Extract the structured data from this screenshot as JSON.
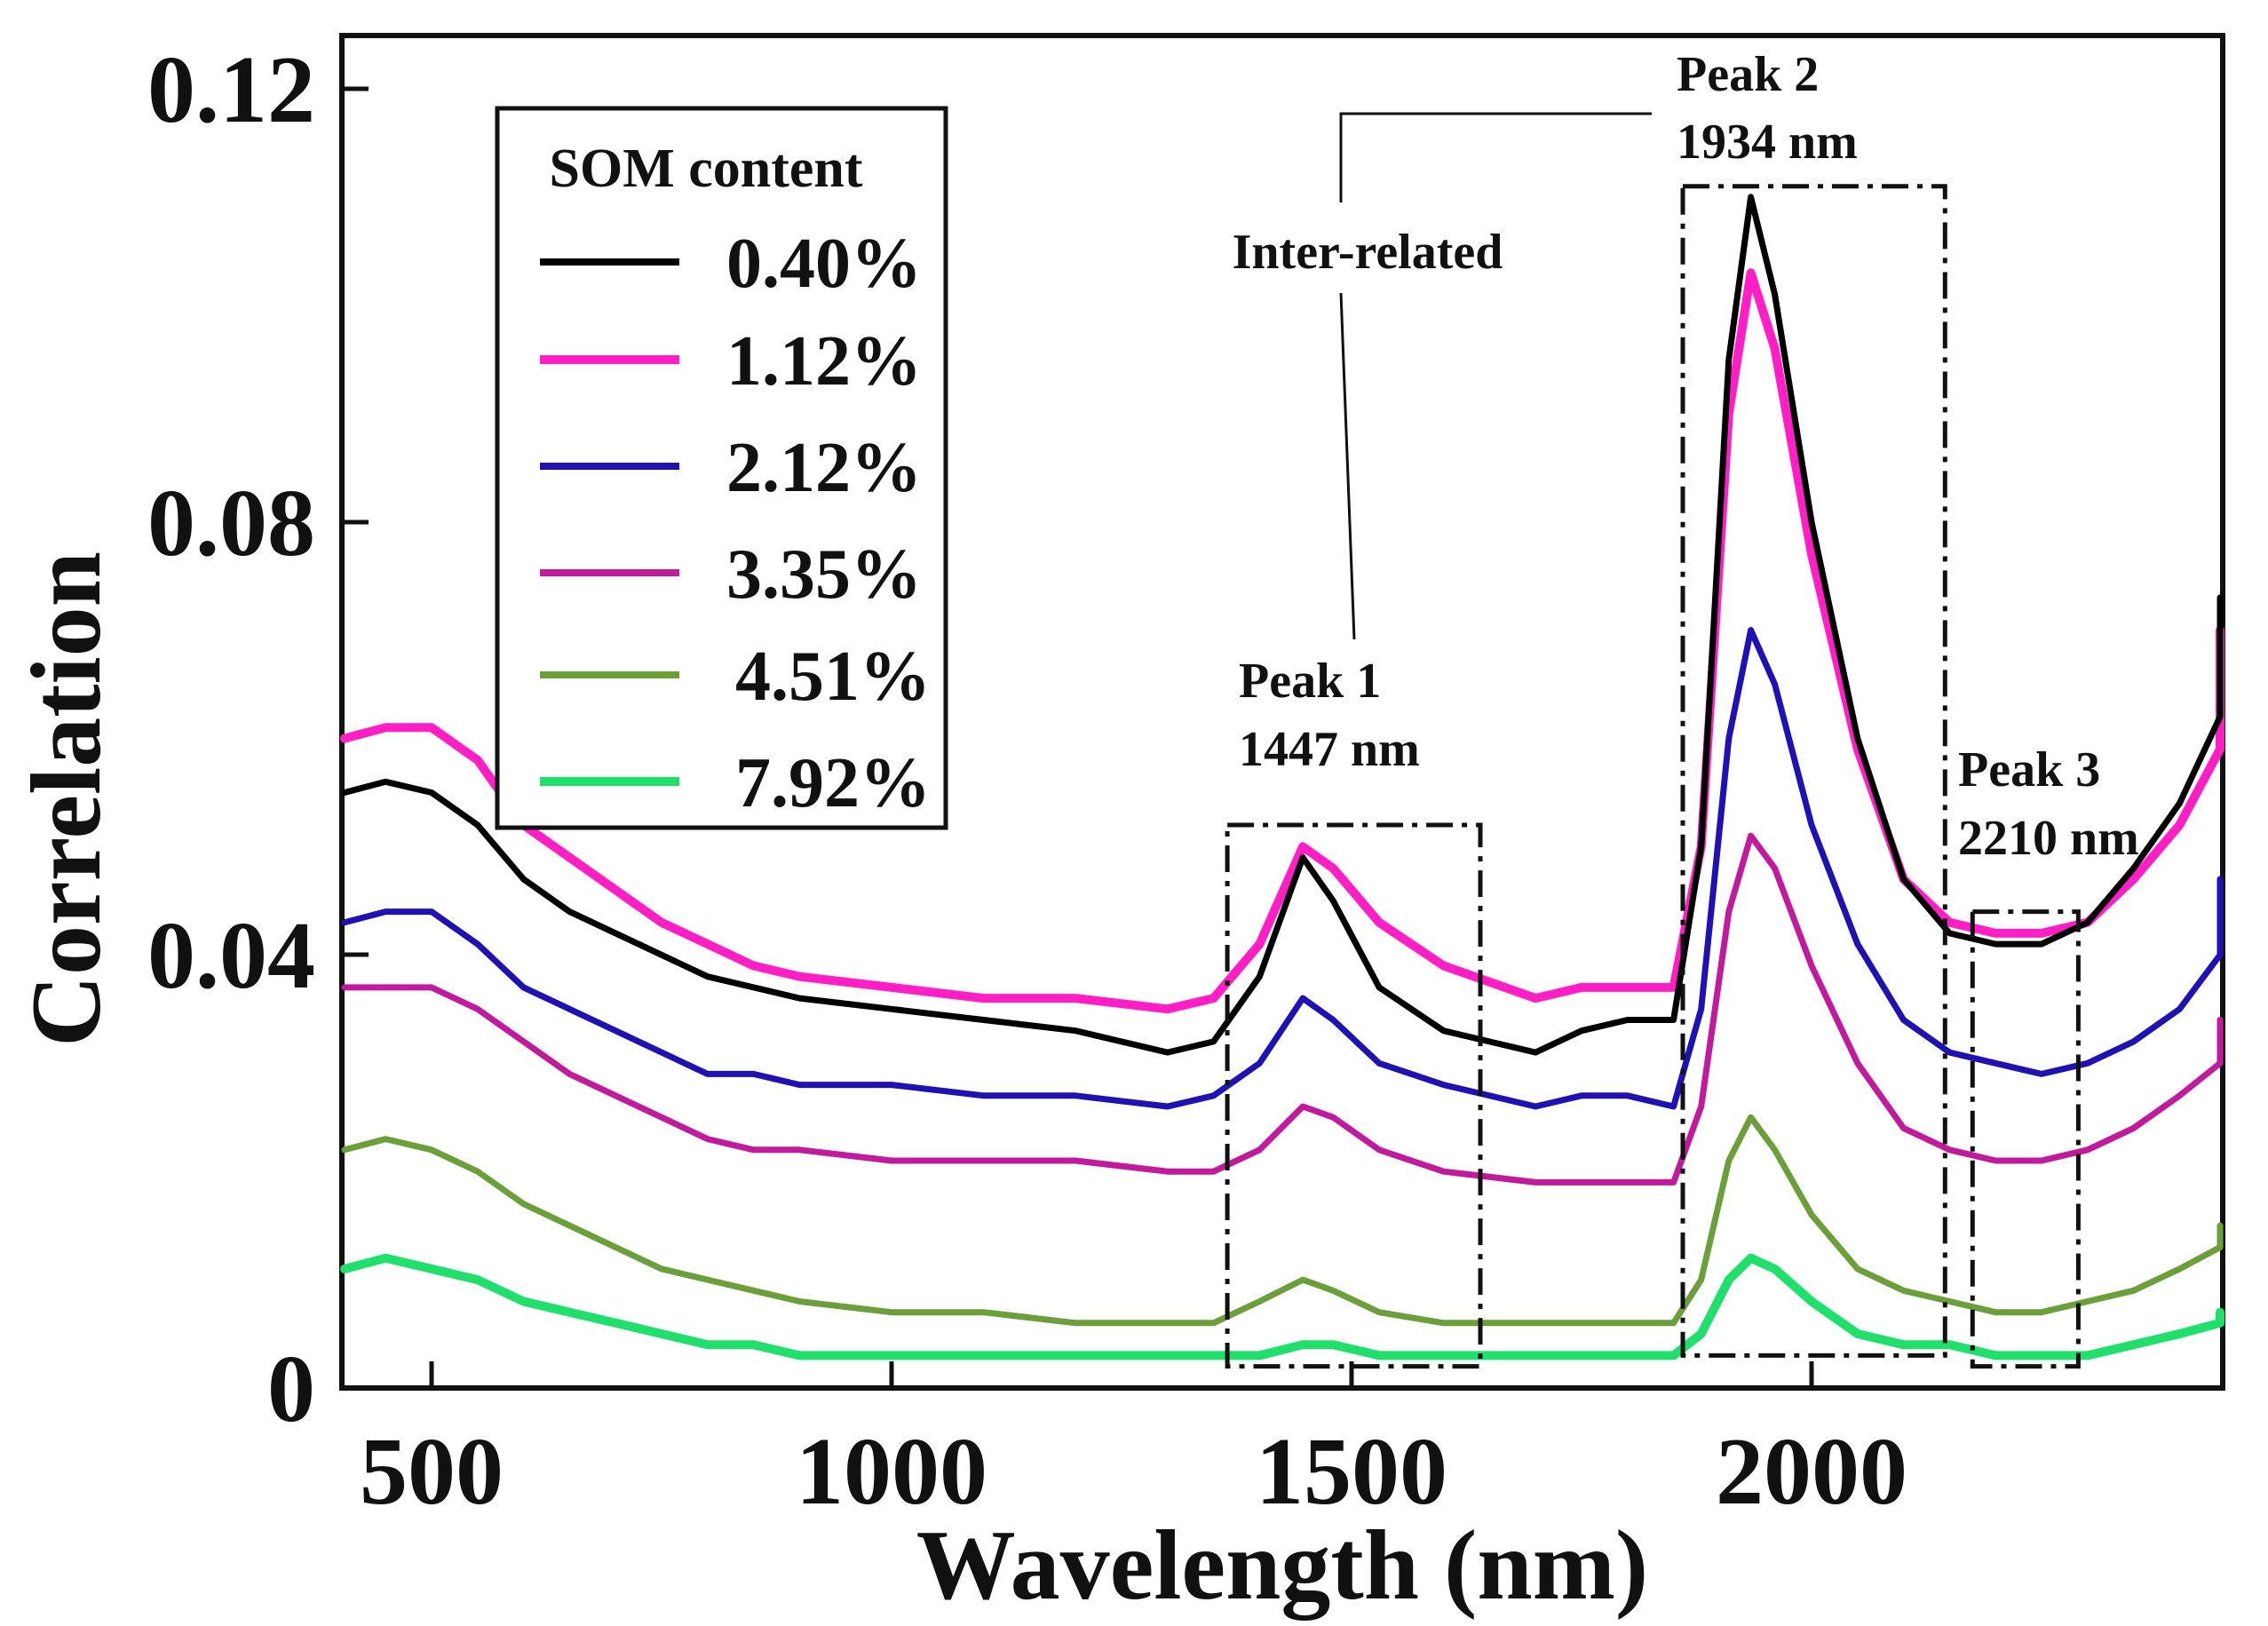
{
  "chart_data": {
    "type": "line",
    "title": "",
    "xlabel": "Wavelength (nm)",
    "ylabel": "Correlation",
    "xlim": [
      400,
      2500
    ],
    "ylim": [
      0,
      0.125
    ],
    "xticks": [
      {
        "value": 500,
        "label": "500"
      },
      {
        "value": 1000,
        "label": "1000"
      },
      {
        "value": 1500,
        "label": "1500"
      },
      {
        "value": 2000,
        "label": "2000"
      }
    ],
    "yticks": [
      {
        "value": 0,
        "label": "0"
      },
      {
        "value": 0.04,
        "label": "0.04"
      },
      {
        "value": 0.08,
        "label": "0.08"
      },
      {
        "value": 0.12,
        "label": "0.12"
      }
    ],
    "grid": false,
    "legend": {
      "title": "SOM content",
      "position": "top-left"
    },
    "series": [
      {
        "name": "0.40%",
        "color": "#000000",
        "points": [
          [
            400,
            0.055
          ],
          [
            450,
            0.056
          ],
          [
            500,
            0.055
          ],
          [
            550,
            0.052
          ],
          [
            600,
            0.047
          ],
          [
            650,
            0.044
          ],
          [
            700,
            0.042
          ],
          [
            750,
            0.04
          ],
          [
            800,
            0.038
          ],
          [
            850,
            0.037
          ],
          [
            900,
            0.036
          ],
          [
            1000,
            0.035
          ],
          [
            1100,
            0.034
          ],
          [
            1200,
            0.033
          ],
          [
            1300,
            0.031
          ],
          [
            1350,
            0.032
          ],
          [
            1400,
            0.038
          ],
          [
            1447,
            0.049
          ],
          [
            1480,
            0.045
          ],
          [
            1530,
            0.037
          ],
          [
            1600,
            0.033
          ],
          [
            1700,
            0.031
          ],
          [
            1750,
            0.033
          ],
          [
            1800,
            0.034
          ],
          [
            1850,
            0.034
          ],
          [
            1880,
            0.05
          ],
          [
            1910,
            0.095
          ],
          [
            1934,
            0.11
          ],
          [
            1960,
            0.101
          ],
          [
            2000,
            0.08
          ],
          [
            2050,
            0.06
          ],
          [
            2100,
            0.047
          ],
          [
            2150,
            0.042
          ],
          [
            2200,
            0.041
          ],
          [
            2250,
            0.041
          ],
          [
            2300,
            0.043
          ],
          [
            2350,
            0.048
          ],
          [
            2400,
            0.054
          ],
          [
            2450,
            0.062
          ],
          [
            2500,
            0.073
          ]
        ]
      },
      {
        "name": "1.12%",
        "color": "#ff1fc4",
        "points": [
          [
            400,
            0.06
          ],
          [
            450,
            0.061
          ],
          [
            500,
            0.061
          ],
          [
            550,
            0.058
          ],
          [
            600,
            0.052
          ],
          [
            650,
            0.049
          ],
          [
            700,
            0.046
          ],
          [
            750,
            0.043
          ],
          [
            800,
            0.041
          ],
          [
            850,
            0.039
          ],
          [
            900,
            0.038
          ],
          [
            1000,
            0.037
          ],
          [
            1100,
            0.036
          ],
          [
            1200,
            0.036
          ],
          [
            1300,
            0.035
          ],
          [
            1350,
            0.036
          ],
          [
            1400,
            0.041
          ],
          [
            1447,
            0.05
          ],
          [
            1480,
            0.048
          ],
          [
            1530,
            0.043
          ],
          [
            1600,
            0.039
          ],
          [
            1700,
            0.036
          ],
          [
            1750,
            0.037
          ],
          [
            1800,
            0.037
          ],
          [
            1850,
            0.037
          ],
          [
            1880,
            0.05
          ],
          [
            1910,
            0.09
          ],
          [
            1934,
            0.103
          ],
          [
            1960,
            0.096
          ],
          [
            2000,
            0.077
          ],
          [
            2050,
            0.059
          ],
          [
            2100,
            0.047
          ],
          [
            2150,
            0.043
          ],
          [
            2200,
            0.042
          ],
          [
            2250,
            0.042
          ],
          [
            2300,
            0.043
          ],
          [
            2350,
            0.047
          ],
          [
            2400,
            0.052
          ],
          [
            2450,
            0.059
          ],
          [
            2500,
            0.07
          ]
        ]
      },
      {
        "name": "2.12%",
        "color": "#1f11b3",
        "points": [
          [
            400,
            0.043
          ],
          [
            450,
            0.044
          ],
          [
            500,
            0.044
          ],
          [
            550,
            0.041
          ],
          [
            600,
            0.037
          ],
          [
            650,
            0.035
          ],
          [
            700,
            0.033
          ],
          [
            750,
            0.031
          ],
          [
            800,
            0.029
          ],
          [
            850,
            0.029
          ],
          [
            900,
            0.028
          ],
          [
            1000,
            0.028
          ],
          [
            1100,
            0.027
          ],
          [
            1200,
            0.027
          ],
          [
            1300,
            0.026
          ],
          [
            1350,
            0.027
          ],
          [
            1400,
            0.03
          ],
          [
            1447,
            0.036
          ],
          [
            1480,
            0.034
          ],
          [
            1530,
            0.03
          ],
          [
            1600,
            0.028
          ],
          [
            1700,
            0.026
          ],
          [
            1750,
            0.027
          ],
          [
            1800,
            0.027
          ],
          [
            1850,
            0.026
          ],
          [
            1880,
            0.035
          ],
          [
            1910,
            0.06
          ],
          [
            1934,
            0.07
          ],
          [
            1960,
            0.065
          ],
          [
            2000,
            0.052
          ],
          [
            2050,
            0.041
          ],
          [
            2100,
            0.034
          ],
          [
            2150,
            0.031
          ],
          [
            2200,
            0.03
          ],
          [
            2250,
            0.029
          ],
          [
            2300,
            0.03
          ],
          [
            2350,
            0.032
          ],
          [
            2400,
            0.035
          ],
          [
            2450,
            0.04
          ],
          [
            2500,
            0.047
          ]
        ]
      },
      {
        "name": "3.35%",
        "color": "#c21a9c",
        "points": [
          [
            400,
            0.037
          ],
          [
            450,
            0.037
          ],
          [
            500,
            0.037
          ],
          [
            550,
            0.035
          ],
          [
            600,
            0.032
          ],
          [
            650,
            0.029
          ],
          [
            700,
            0.027
          ],
          [
            750,
            0.025
          ],
          [
            800,
            0.023
          ],
          [
            850,
            0.022
          ],
          [
            900,
            0.022
          ],
          [
            1000,
            0.021
          ],
          [
            1100,
            0.021
          ],
          [
            1200,
            0.021
          ],
          [
            1300,
            0.02
          ],
          [
            1350,
            0.02
          ],
          [
            1400,
            0.022
          ],
          [
            1447,
            0.026
          ],
          [
            1480,
            0.025
          ],
          [
            1530,
            0.022
          ],
          [
            1600,
            0.02
          ],
          [
            1700,
            0.019
          ],
          [
            1750,
            0.019
          ],
          [
            1800,
            0.019
          ],
          [
            1850,
            0.019
          ],
          [
            1880,
            0.026
          ],
          [
            1910,
            0.044
          ],
          [
            1934,
            0.051
          ],
          [
            1960,
            0.048
          ],
          [
            2000,
            0.039
          ],
          [
            2050,
            0.03
          ],
          [
            2100,
            0.024
          ],
          [
            2150,
            0.022
          ],
          [
            2200,
            0.021
          ],
          [
            2250,
            0.021
          ],
          [
            2300,
            0.022
          ],
          [
            2350,
            0.024
          ],
          [
            2400,
            0.027
          ],
          [
            2450,
            0.03
          ],
          [
            2500,
            0.034
          ]
        ]
      },
      {
        "name": "4.51%",
        "color": "#6a9f3a",
        "points": [
          [
            400,
            0.022
          ],
          [
            450,
            0.023
          ],
          [
            500,
            0.022
          ],
          [
            550,
            0.02
          ],
          [
            600,
            0.017
          ],
          [
            650,
            0.015
          ],
          [
            700,
            0.013
          ],
          [
            750,
            0.011
          ],
          [
            800,
            0.01
          ],
          [
            850,
            0.009
          ],
          [
            900,
            0.008
          ],
          [
            1000,
            0.007
          ],
          [
            1100,
            0.007
          ],
          [
            1200,
            0.006
          ],
          [
            1300,
            0.006
          ],
          [
            1350,
            0.006
          ],
          [
            1400,
            0.008
          ],
          [
            1447,
            0.01
          ],
          [
            1480,
            0.009
          ],
          [
            1530,
            0.007
          ],
          [
            1600,
            0.006
          ],
          [
            1700,
            0.006
          ],
          [
            1750,
            0.006
          ],
          [
            1800,
            0.006
          ],
          [
            1850,
            0.006
          ],
          [
            1880,
            0.01
          ],
          [
            1910,
            0.021
          ],
          [
            1934,
            0.025
          ],
          [
            1960,
            0.022
          ],
          [
            2000,
            0.016
          ],
          [
            2050,
            0.011
          ],
          [
            2100,
            0.009
          ],
          [
            2150,
            0.008
          ],
          [
            2200,
            0.007
          ],
          [
            2250,
            0.007
          ],
          [
            2300,
            0.008
          ],
          [
            2350,
            0.009
          ],
          [
            2400,
            0.011
          ],
          [
            2450,
            0.013
          ],
          [
            2500,
            0.015
          ]
        ]
      },
      {
        "name": "7.92%",
        "color": "#1ee06a",
        "points": [
          [
            400,
            0.011
          ],
          [
            450,
            0.012
          ],
          [
            500,
            0.011
          ],
          [
            550,
            0.01
          ],
          [
            600,
            0.008
          ],
          [
            650,
            0.007
          ],
          [
            700,
            0.006
          ],
          [
            750,
            0.005
          ],
          [
            800,
            0.004
          ],
          [
            850,
            0.004
          ],
          [
            900,
            0.003
          ],
          [
            1000,
            0.003
          ],
          [
            1100,
            0.003
          ],
          [
            1200,
            0.003
          ],
          [
            1300,
            0.003
          ],
          [
            1350,
            0.003
          ],
          [
            1400,
            0.003
          ],
          [
            1447,
            0.004
          ],
          [
            1480,
            0.004
          ],
          [
            1530,
            0.003
          ],
          [
            1600,
            0.003
          ],
          [
            1700,
            0.003
          ],
          [
            1750,
            0.003
          ],
          [
            1800,
            0.003
          ],
          [
            1850,
            0.003
          ],
          [
            1880,
            0.005
          ],
          [
            1910,
            0.01
          ],
          [
            1934,
            0.012
          ],
          [
            1960,
            0.011
          ],
          [
            2000,
            0.008
          ],
          [
            2050,
            0.005
          ],
          [
            2100,
            0.004
          ],
          [
            2150,
            0.004
          ],
          [
            2200,
            0.003
          ],
          [
            2250,
            0.003
          ],
          [
            2300,
            0.003
          ],
          [
            2350,
            0.004
          ],
          [
            2400,
            0.005
          ],
          [
            2450,
            0.006
          ],
          [
            2500,
            0.007
          ]
        ]
      }
    ],
    "annotations": [
      {
        "id": "peak-1",
        "line1": "Peak 1",
        "line2": "1447 nm",
        "box_x": [
          1365,
          1640
        ],
        "box_y": [
          0.002,
          0.052
        ]
      },
      {
        "id": "peak-2",
        "line1": "Peak 2",
        "line2": "1934 nm",
        "box_x": [
          1860,
          2145
        ],
        "box_y": [
          0.003,
          0.111
        ]
      },
      {
        "id": "peak-3",
        "line1": "Peak 3",
        "line2": "2210 nm",
        "box_x": [
          2175,
          2290
        ],
        "box_y": [
          0.002,
          0.044
        ]
      }
    ],
    "relation_label": "Inter-related"
  }
}
